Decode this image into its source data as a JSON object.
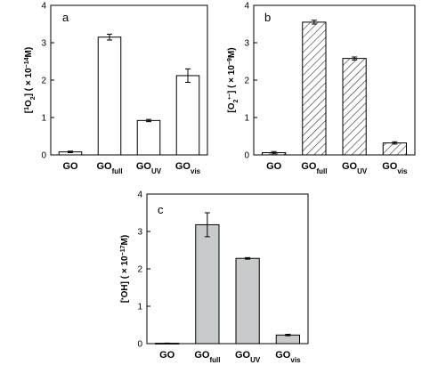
{
  "chart_data": [
    {
      "id": "a",
      "type": "bar",
      "panel_label": "a",
      "ylabel": {
        "open": "[",
        "sup": "1",
        "species": "O",
        "sub": "2",
        "close": "] ( × 10",
        "exp": "−14",
        "unit": "M)"
      },
      "ylim": [
        0,
        4
      ],
      "yticks": [
        "0",
        "1",
        "2",
        "3",
        "4"
      ],
      "categories": [
        {
          "base": "GO",
          "sub": ""
        },
        {
          "base": "GO",
          "sub": "full"
        },
        {
          "base": "GO",
          "sub": "UV"
        },
        {
          "base": "GO",
          "sub": "vis"
        }
      ],
      "values": [
        0.08,
        3.15,
        0.92,
        2.12
      ],
      "errors": [
        0.02,
        0.08,
        0.03,
        0.18
      ],
      "fill": "white"
    },
    {
      "id": "b",
      "type": "bar",
      "panel_label": "b",
      "ylabel": {
        "open": "[",
        "sup": "",
        "species": "O",
        "sub": "2",
        "supafter": "•−",
        "close": "] ( × 10",
        "exp": "−9",
        "unit": "M)"
      },
      "ylim": [
        0,
        4
      ],
      "yticks": [
        "0",
        "1",
        "2",
        "3",
        "4"
      ],
      "categories": [
        {
          "base": "GO",
          "sub": ""
        },
        {
          "base": "GO",
          "sub": "full"
        },
        {
          "base": "GO",
          "sub": "UV"
        },
        {
          "base": "GO",
          "sub": "vis"
        }
      ],
      "values": [
        0.06,
        3.55,
        2.58,
        0.32
      ],
      "errors": [
        0.03,
        0.05,
        0.04,
        0.03
      ],
      "fill": "hatched"
    },
    {
      "id": "c",
      "type": "bar",
      "panel_label": "c",
      "ylabel": {
        "open": "[",
        "sup": "•",
        "species": "OH",
        "sub": "",
        "close": "] ( × 10",
        "exp": "−17",
        "unit": "M)"
      },
      "ylim": [
        0,
        4
      ],
      "yticks": [
        "0",
        "1",
        "2",
        "3",
        "4"
      ],
      "categories": [
        {
          "base": "GO",
          "sub": ""
        },
        {
          "base": "GO",
          "sub": "full"
        },
        {
          "base": "GO",
          "sub": "UV"
        },
        {
          "base": "GO",
          "sub": "vis"
        }
      ],
      "values": [
        0.01,
        3.18,
        2.28,
        0.23
      ],
      "errors": [
        0.005,
        0.32,
        0.02,
        0.02
      ],
      "fill": "gray"
    }
  ],
  "colors": {
    "bar_stroke": "#000000",
    "gray_fill": "#c8cbcb",
    "hatch": "#333333",
    "white_fill": "#ffffff"
  }
}
